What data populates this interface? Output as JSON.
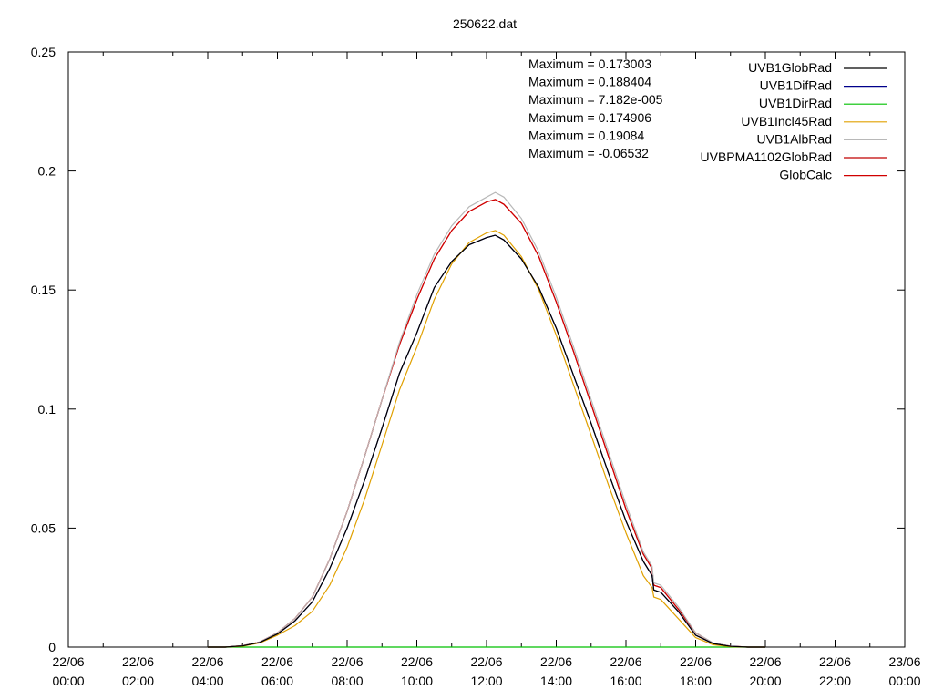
{
  "chart_data": {
    "type": "line",
    "title": "250622.dat",
    "xlabel": "",
    "ylabel": "",
    "ylim": [
      0,
      0.25
    ],
    "y_ticks": [
      "0",
      "0.05",
      "0.1",
      "0.15",
      "0.2",
      "0.25"
    ],
    "y_tick_values": [
      0,
      0.05,
      0.1,
      0.15,
      0.2,
      0.25
    ],
    "xlim_hours": [
      0,
      24
    ],
    "x_ticks": [
      {
        "hour": 0,
        "date": "22/06",
        "time": "00:00"
      },
      {
        "hour": 2,
        "date": "22/06",
        "time": "02:00"
      },
      {
        "hour": 4,
        "date": "22/06",
        "time": "04:00"
      },
      {
        "hour": 6,
        "date": "22/06",
        "time": "06:00"
      },
      {
        "hour": 8,
        "date": "22/06",
        "time": "08:00"
      },
      {
        "hour": 10,
        "date": "22/06",
        "time": "10:00"
      },
      {
        "hour": 12,
        "date": "22/06",
        "time": "12:00"
      },
      {
        "hour": 14,
        "date": "22/06",
        "time": "14:00"
      },
      {
        "hour": 16,
        "date": "22/06",
        "time": "16:00"
      },
      {
        "hour": 18,
        "date": "22/06",
        "time": "18:00"
      },
      {
        "hour": 20,
        "date": "22/06",
        "time": "20:00"
      },
      {
        "hour": 22,
        "date": "22/06",
        "time": "22:00"
      },
      {
        "hour": 24,
        "date": "23/06",
        "time": "00:00"
      }
    ],
    "annotations": [
      "Maximum = 0.173003",
      "Maximum = 0.188404",
      "Maximum = 7.182e-005",
      "Maximum = 0.174906",
      "Maximum = 0.19084",
      "Maximum = -0.06532"
    ],
    "legend_position": "top-right",
    "x": [
      4.0,
      4.5,
      5.0,
      5.5,
      6.0,
      6.5,
      7.0,
      7.5,
      8.0,
      8.5,
      9.0,
      9.5,
      10.0,
      10.5,
      11.0,
      11.5,
      12.0,
      12.25,
      12.5,
      13.0,
      13.5,
      14.0,
      14.5,
      15.0,
      15.5,
      16.0,
      16.5,
      16.75,
      16.8,
      17.0,
      17.5,
      18.0,
      18.5,
      19.0,
      19.5,
      20.0
    ],
    "series": [
      {
        "name": "UVB1GlobRad",
        "color": "#000000",
        "values": [
          0,
          0,
          0.0005,
          0.002,
          0.0055,
          0.011,
          0.019,
          0.033,
          0.05,
          0.07,
          0.092,
          0.115,
          0.132,
          0.151,
          0.162,
          0.169,
          0.172,
          0.173,
          0.171,
          0.163,
          0.151,
          0.134,
          0.114,
          0.094,
          0.073,
          0.053,
          0.036,
          0.03,
          0.024,
          0.023,
          0.015,
          0.005,
          0.0015,
          0.0003,
          0,
          0
        ]
      },
      {
        "name": "UVB1DifRad",
        "color": "#00008b",
        "values": [
          0,
          0,
          0.0005,
          0.002,
          0.0055,
          0.011,
          0.019,
          0.033,
          0.05,
          0.07,
          0.092,
          0.115,
          0.132,
          0.151,
          0.162,
          0.169,
          0.172,
          0.173,
          0.171,
          0.163,
          0.151,
          0.134,
          0.114,
          0.094,
          0.073,
          0.053,
          0.036,
          0.03,
          0.024,
          0.023,
          0.015,
          0.005,
          0.0015,
          0.0003,
          0,
          0
        ]
      },
      {
        "name": "UVB1DirRad",
        "color": "#00c000",
        "values": [
          0,
          0,
          0,
          0,
          0,
          0,
          0,
          0,
          0,
          0,
          0,
          0,
          0,
          0,
          0,
          0,
          0,
          0,
          0,
          0,
          0,
          0,
          0,
          0,
          0,
          0,
          0,
          0,
          0,
          0,
          0,
          0,
          0,
          0,
          0,
          0
        ]
      },
      {
        "name": "UVB1Incl45Rad",
        "color": "#e0a000",
        "values": [
          0,
          0,
          0.0004,
          0.0018,
          0.005,
          0.009,
          0.015,
          0.026,
          0.042,
          0.062,
          0.085,
          0.108,
          0.126,
          0.146,
          0.161,
          0.17,
          0.174,
          0.175,
          0.173,
          0.164,
          0.15,
          0.131,
          0.11,
          0.089,
          0.068,
          0.048,
          0.03,
          0.025,
          0.021,
          0.02,
          0.012,
          0.004,
          0.001,
          0.0002,
          0,
          0
        ]
      },
      {
        "name": "UVB1AlbRad",
        "color": "#b8b8b8",
        "values": [
          0,
          0,
          0.0006,
          0.0022,
          0.006,
          0.012,
          0.021,
          0.037,
          0.057,
          0.08,
          0.104,
          0.128,
          0.148,
          0.165,
          0.177,
          0.185,
          0.189,
          0.191,
          0.189,
          0.18,
          0.166,
          0.147,
          0.126,
          0.104,
          0.082,
          0.06,
          0.04,
          0.034,
          0.027,
          0.026,
          0.017,
          0.006,
          0.0018,
          0.0004,
          0,
          0
        ]
      },
      {
        "name": "UVBPMA1102GlobRad",
        "color": "#c00000",
        "values": [
          0,
          0,
          0.0006,
          0.0022,
          0.006,
          0.012,
          0.021,
          0.037,
          0.057,
          0.08,
          0.104,
          0.127,
          0.146,
          0.163,
          0.175,
          0.183,
          0.187,
          0.188,
          0.186,
          0.178,
          0.164,
          0.145,
          0.124,
          0.102,
          0.08,
          0.058,
          0.039,
          0.033,
          0.026,
          0.025,
          0.016,
          0.006,
          0.0017,
          0.0004,
          0,
          0
        ]
      },
      {
        "name": "GlobCalc",
        "color": "#d00000",
        "values": [
          0,
          0,
          0.0006,
          0.0022,
          0.006,
          0.012,
          0.021,
          0.037,
          0.057,
          0.08,
          0.104,
          0.127,
          0.146,
          0.163,
          0.175,
          0.183,
          0.187,
          0.188,
          0.186,
          0.178,
          0.164,
          0.145,
          0.124,
          0.102,
          0.08,
          0.058,
          0.039,
          0.033,
          0.026,
          0.025,
          0.016,
          0.006,
          0.0017,
          0.0004,
          0,
          0
        ]
      }
    ]
  }
}
